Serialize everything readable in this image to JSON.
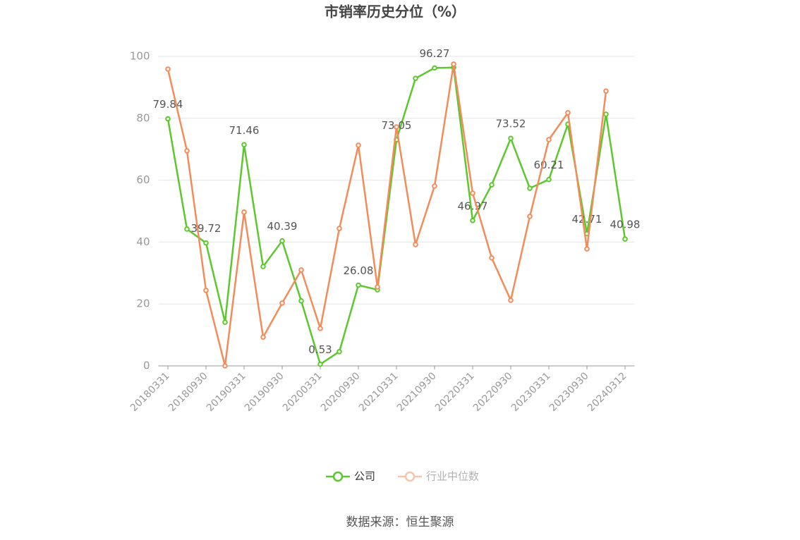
{
  "chart_data": {
    "type": "line",
    "title": "市销率历史分位（%）",
    "categories": [
      "20180331",
      null,
      "20180930",
      null,
      "20190331",
      null,
      "20190930",
      null,
      "20200331",
      null,
      "20200930",
      null,
      "20210331",
      null,
      "20210930",
      null,
      "20220331",
      null,
      "20220930",
      null,
      "20230331",
      null,
      "20230930",
      null,
      "20240312"
    ],
    "series": [
      {
        "name": "公司",
        "color": "#5cc72e",
        "values": [
          79.84,
          44.2,
          39.72,
          14.1,
          71.46,
          32.1,
          40.39,
          21.0,
          0.53,
          4.6,
          26.08,
          24.6,
          73.05,
          92.9,
          96.27,
          96.4,
          46.97,
          58.5,
          73.52,
          57.4,
          60.21,
          78.1,
          42.71,
          81.3,
          40.98
        ]
      },
      {
        "name": "行业中位数",
        "color": "#f28c5a",
        "values": [
          95.9,
          69.5,
          24.4,
          0,
          49.7,
          9.3,
          20.3,
          31.0,
          12.1,
          44.4,
          71.3,
          25.5,
          77.2,
          39.2,
          58.1,
          97.5,
          55.8,
          34.9,
          21.2,
          48.3,
          73.1,
          81.8,
          37.8,
          88.8,
          null
        ]
      }
    ],
    "ylim": [
      0,
      100
    ],
    "yticks": [
      0,
      20,
      40,
      60,
      80,
      100
    ],
    "grid": true,
    "legend": "bottom",
    "source": "数据来源：恒生聚源"
  }
}
